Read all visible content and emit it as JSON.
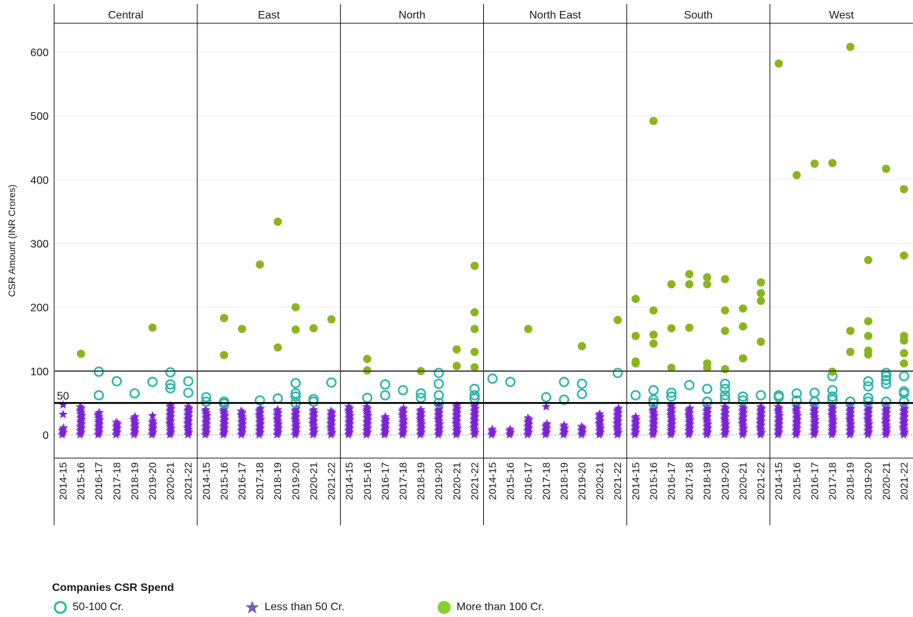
{
  "chart_data": {
    "type": "scatter",
    "ylabel": "CSR Amount (INR Crores)",
    "ylim": [
      -35,
      650
    ],
    "yticks": [
      0,
      100,
      200,
      300,
      400,
      500,
      600
    ],
    "reference_lines": [
      {
        "value": 50,
        "label": "50"
      },
      {
        "value": 100,
        "label": ""
      }
    ],
    "categories": [
      "2014-15",
      "2015-16",
      "2016-17",
      "2017-18",
      "2018-19",
      "2019-20",
      "2020-21",
      "2021-22"
    ],
    "panels": [
      {
        "name": "Central",
        "series": {
          "mid": [
            [
              2,
              99
            ],
            [
              2,
              62
            ],
            [
              3,
              84
            ],
            [
              4,
              65
            ],
            [
              5,
              83
            ],
            [
              6,
              98
            ],
            [
              6,
              79
            ],
            [
              6,
              73
            ],
            [
              7,
              84
            ],
            [
              7,
              66
            ]
          ],
          "high": [
            [
              1,
              127
            ],
            [
              5,
              168
            ]
          ],
          "low_max": [
            12,
            45,
            36,
            20,
            30,
            22,
            47,
            45
          ],
          "low_extra": [
            [
              0,
              32
            ],
            [
              0,
              47
            ],
            [
              5,
              30
            ],
            [
              7,
              38
            ]
          ]
        }
      },
      {
        "name": "East",
        "series": {
          "mid": [
            [
              0,
              59
            ],
            [
              0,
              52
            ],
            [
              1,
              52
            ],
            [
              1,
              49
            ],
            [
              3,
              54
            ],
            [
              4,
              57
            ],
            [
              5,
              81
            ],
            [
              5,
              65
            ],
            [
              5,
              60
            ],
            [
              5,
              50
            ],
            [
              6,
              56
            ],
            [
              6,
              52
            ],
            [
              7,
              82
            ]
          ],
          "high": [
            [
              1,
              183
            ],
            [
              1,
              125
            ],
            [
              2,
              166
            ],
            [
              3,
              267
            ],
            [
              4,
              334
            ],
            [
              4,
              137
            ],
            [
              5,
              200
            ],
            [
              5,
              165
            ],
            [
              6,
              167
            ],
            [
              7,
              181
            ]
          ],
          "low_max": [
            40,
            42,
            38,
            44,
            40,
            42,
            40,
            38
          ],
          "low_extra": []
        }
      },
      {
        "name": "North",
        "series": {
          "mid": [
            [
              1,
              58
            ],
            [
              2,
              79
            ],
            [
              2,
              62
            ],
            [
              3,
              70
            ],
            [
              4,
              65
            ],
            [
              4,
              58
            ],
            [
              5,
              97
            ],
            [
              5,
              80
            ],
            [
              5,
              62
            ],
            [
              5,
              50
            ],
            [
              7,
              72
            ],
            [
              7,
              62
            ],
            [
              7,
              57
            ]
          ],
          "high": [
            [
              1,
              119
            ],
            [
              1,
              101
            ],
            [
              4,
              100
            ],
            [
              6,
              134
            ],
            [
              6,
              108
            ],
            [
              7,
              265
            ],
            [
              7,
              192
            ],
            [
              7,
              166
            ],
            [
              7,
              130
            ],
            [
              7,
              106
            ]
          ],
          "low_max": [
            45,
            45,
            30,
            42,
            40,
            47,
            48,
            47
          ],
          "low_extra": []
        }
      },
      {
        "name": "North East",
        "series": {
          "mid": [
            [
              0,
              88
            ],
            [
              1,
              83
            ],
            [
              3,
              59
            ],
            [
              4,
              83
            ],
            [
              4,
              55
            ],
            [
              5,
              80
            ],
            [
              5,
              64
            ],
            [
              7,
              97
            ]
          ],
          "high": [
            [
              2,
              166
            ],
            [
              5,
              139
            ],
            [
              7,
              180
            ]
          ],
          "low_max": [
            10,
            10,
            28,
            18,
            16,
            15,
            34,
            44
          ],
          "low_extra": [
            [
              3,
              44
            ]
          ]
        }
      },
      {
        "name": "South",
        "series": {
          "mid": [
            [
              0,
              62
            ],
            [
              1,
              70
            ],
            [
              1,
              55
            ],
            [
              1,
              50
            ],
            [
              2,
              66
            ],
            [
              2,
              60
            ],
            [
              3,
              78
            ],
            [
              4,
              72
            ],
            [
              4,
              52
            ],
            [
              5,
              80
            ],
            [
              5,
              72
            ],
            [
              5,
              62
            ],
            [
              5,
              56
            ],
            [
              6,
              60
            ],
            [
              6,
              54
            ],
            [
              7,
              62
            ]
          ],
          "high": [
            [
              0,
              213
            ],
            [
              0,
              155
            ],
            [
              0,
              115
            ],
            [
              0,
              112
            ],
            [
              1,
              492
            ],
            [
              1,
              195
            ],
            [
              1,
              157
            ],
            [
              1,
              143
            ],
            [
              2,
              236
            ],
            [
              2,
              167
            ],
            [
              2,
              105
            ],
            [
              3,
              252
            ],
            [
              3,
              236
            ],
            [
              3,
              168
            ],
            [
              4,
              247
            ],
            [
              4,
              236
            ],
            [
              4,
              112
            ],
            [
              4,
              105
            ],
            [
              5,
              244
            ],
            [
              5,
              195
            ],
            [
              5,
              163
            ],
            [
              5,
              103
            ],
            [
              6,
              198
            ],
            [
              6,
              170
            ],
            [
              6,
              120
            ],
            [
              7,
              239
            ],
            [
              7,
              222
            ],
            [
              7,
              210
            ],
            [
              7,
              146
            ]
          ],
          "low_max": [
            30,
            45,
            48,
            44,
            45,
            46,
            46,
            46
          ],
          "low_extra": []
        }
      },
      {
        "name": "West",
        "series": {
          "mid": [
            [
              0,
              62
            ],
            [
              0,
              59
            ],
            [
              1,
              65
            ],
            [
              1,
              54
            ],
            [
              2,
              66
            ],
            [
              2,
              52
            ],
            [
              3,
              92
            ],
            [
              3,
              70
            ],
            [
              3,
              60
            ],
            [
              3,
              55
            ],
            [
              4,
              52
            ],
            [
              5,
              84
            ],
            [
              5,
              76
            ],
            [
              5,
              58
            ],
            [
              5,
              52
            ],
            [
              6,
              97
            ],
            [
              6,
              92
            ],
            [
              6,
              86
            ],
            [
              6,
              80
            ],
            [
              6,
              52
            ],
            [
              7,
              92
            ],
            [
              7,
              68
            ],
            [
              7,
              65
            ],
            [
              7,
              52
            ]
          ],
          "high": [
            [
              0,
              582
            ],
            [
              1,
              407
            ],
            [
              2,
              425
            ],
            [
              3,
              426
            ],
            [
              3,
              99
            ],
            [
              4,
              608
            ],
            [
              4,
              163
            ],
            [
              4,
              130
            ],
            [
              5,
              274
            ],
            [
              5,
              178
            ],
            [
              5,
              155
            ],
            [
              5,
              132
            ],
            [
              5,
              126
            ],
            [
              6,
              417
            ],
            [
              7,
              385
            ],
            [
              7,
              281
            ],
            [
              7,
              155
            ],
            [
              7,
              148
            ],
            [
              7,
              128
            ],
            [
              7,
              112
            ]
          ],
          "low_max": [
            46,
            48,
            48,
            48,
            48,
            48,
            48,
            48
          ],
          "low_extra": []
        }
      }
    ],
    "legend": {
      "title": "Companies CSR Spend",
      "items": [
        {
          "name": "50-100 Cr.",
          "marker": "open-circle",
          "color": "#2ab7a9"
        },
        {
          "name": "Less than 50 Cr.",
          "marker": "star",
          "color": "#7a22d6"
        },
        {
          "name": "More than 100 Cr.",
          "marker": "filled-circle",
          "color": "#8bb51d"
        }
      ]
    },
    "colors": {
      "mid": "#2ab7a9",
      "low": "#7a22d6",
      "high": "#8bb51d"
    }
  }
}
